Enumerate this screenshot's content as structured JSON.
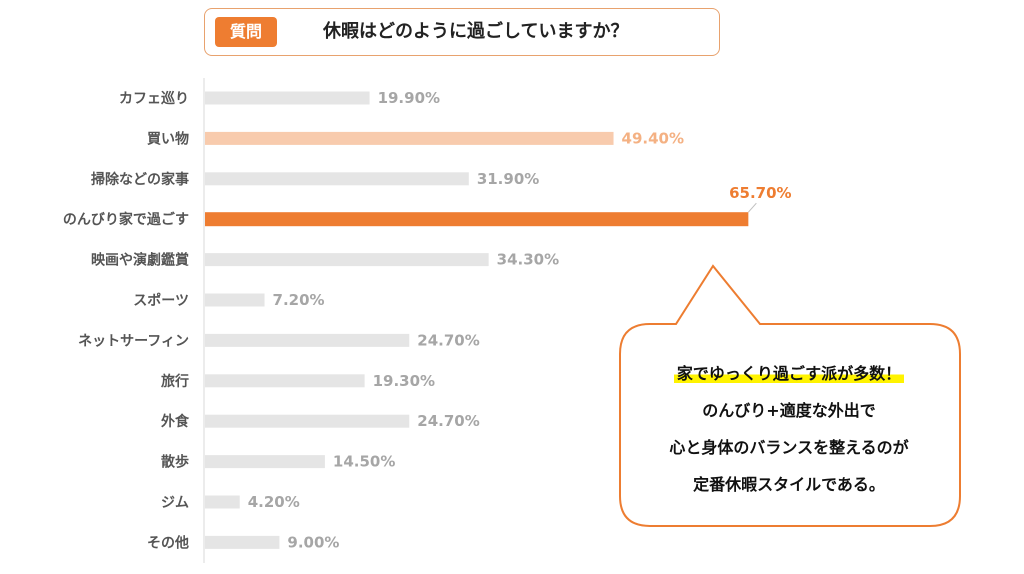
{
  "question": {
    "badge": "質問",
    "text": "休暇はどのように過ごしていますか？"
  },
  "chart_data": {
    "type": "bar",
    "orientation": "horizontal",
    "title": "休暇はどのように過ごしていますか？",
    "categories": [
      "カフェ巡り",
      "買い物",
      "掃除などの家事",
      "のんびり家で過ごす",
      "映画や演劇鑑賞",
      "スポーツ",
      "ネットサーフィン",
      "旅行",
      "外食",
      "散歩",
      "ジム",
      "その他"
    ],
    "values": [
      19.9,
      49.4,
      31.9,
      65.7,
      34.3,
      7.2,
      24.7,
      19.3,
      24.7,
      14.5,
      4.2,
      9.0
    ],
    "value_labels": [
      "19.90%",
      "49.40%",
      "31.90%",
      "65.70%",
      "34.30%",
      "7.20%",
      "24.70%",
      "19.30%",
      "24.70%",
      "14.50%",
      "4.20%",
      "9.00%"
    ],
    "xlim": [
      0,
      100
    ],
    "xlabel": "",
    "ylabel": "",
    "grid": false,
    "highlight_primary": 3,
    "highlight_secondary": 1
  },
  "colors": {
    "accent": "#ee7d31",
    "accent_light": "#f8cbad",
    "bar": "#e5e5e5",
    "value_text": "#a6a6a6",
    "accent_light_text": "#f4b183",
    "callout_border": "#ed7d31"
  },
  "callout": {
    "lines": [
      "家でゆっくり過ごす派が多数！",
      "のんびり+適度な外出で",
      "心と身体のバランスを整えるのが",
      "定番休暇スタイルである。"
    ]
  }
}
